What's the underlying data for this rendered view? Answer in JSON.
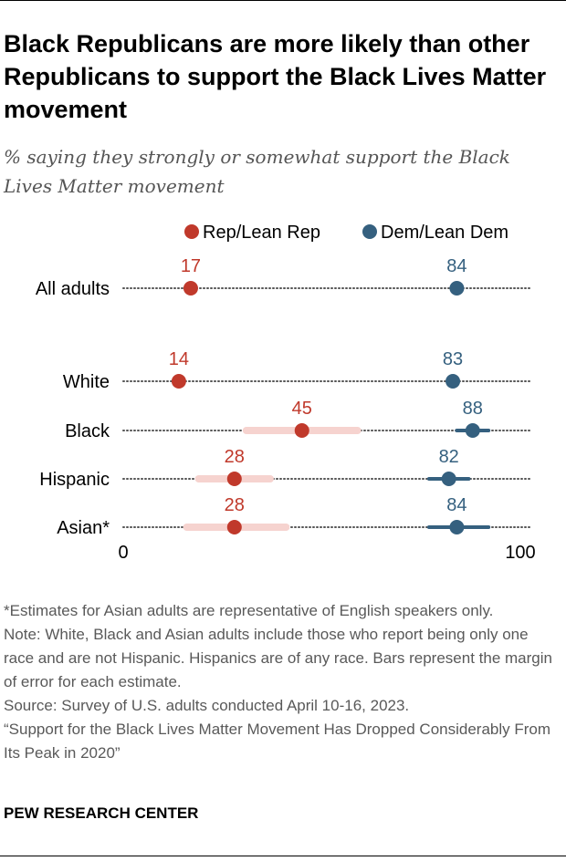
{
  "title": "Black Republicans are more likely than other Republicans to support the Black Lives Matter movement",
  "subtitle": "% saying they strongly or somewhat support the Black Lives Matter movement",
  "chart_data": {
    "type": "dot",
    "legend": [
      {
        "name": "Rep/Lean Rep",
        "color": "#c0392b"
      },
      {
        "name": "Dem/Lean Dem",
        "color": "#35607f"
      }
    ],
    "categories": [
      "All adults",
      "White",
      "Black",
      "Hispanic",
      "Asian*"
    ],
    "series": [
      {
        "name": "Rep/Lean Rep",
        "values": [
          17,
          14,
          45,
          28,
          28
        ],
        "moe_low": [
          null,
          null,
          31,
          19,
          16
        ],
        "moe_high": [
          null,
          null,
          59,
          37,
          41
        ]
      },
      {
        "name": "Dem/Lean Dem",
        "values": [
          84,
          83,
          88,
          82,
          84
        ],
        "moe_low": [
          null,
          null,
          84,
          77,
          77
        ],
        "moe_high": [
          null,
          null,
          92,
          87,
          92
        ]
      }
    ],
    "xlim": [
      0,
      100
    ],
    "axis_labels": [
      "0",
      "100"
    ],
    "colors": {
      "rep": "#c0392b",
      "rep_bar": "#f6d3cf",
      "dem": "#35607f",
      "dem_bar": "#35607f",
      "dots": "#555555"
    }
  },
  "footnotes": [
    "*Estimates for Asian adults are representative of English speakers only.",
    "Note: White, Black and Asian adults include those who report being only one race and are not Hispanic. Hispanics are of any race. Bars represent the margin of error for each estimate.",
    "Source: Survey of U.S. adults conducted April 10-16, 2023.",
    "“Support for the Black Lives Matter Movement Has Dropped Considerably From Its Peak in 2020”"
  ],
  "brand": "PEW RESEARCH CENTER"
}
